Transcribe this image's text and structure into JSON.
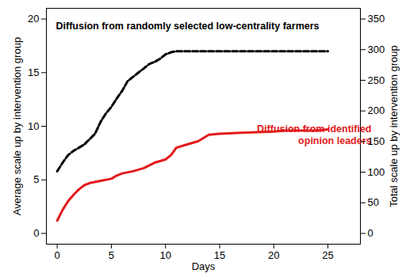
{
  "chart_data": {
    "type": "line",
    "x_label": "Days",
    "y_label": "Average scale up by intervention group",
    "y2_label": "Total scale up by intervention group",
    "xlim": [
      -1,
      28
    ],
    "xticks": [
      0,
      5,
      10,
      15,
      20,
      25
    ],
    "ylim": [
      -1,
      21
    ],
    "yticks": [
      0,
      5,
      10,
      15,
      20
    ],
    "y2lim": [
      -17.5,
      367.5
    ],
    "y2ticks": [
      0,
      50,
      100,
      150,
      200,
      250,
      300,
      350
    ],
    "series": [
      {
        "name": "Diffusion from randomly selected low-centrality farmers",
        "color": "#000000",
        "line_style": "dashed",
        "x": [
          0,
          0.5,
          1,
          1.5,
          2,
          2.5,
          3,
          3.5,
          4,
          4.5,
          5,
          5.5,
          6,
          6.5,
          7,
          7.5,
          8,
          8.5,
          9,
          9.5,
          10,
          10.5,
          11,
          12,
          25
        ],
        "values": [
          5.8,
          6.6,
          7.3,
          7.7,
          8.0,
          8.3,
          8.8,
          9.3,
          10.4,
          11.2,
          11.8,
          12.6,
          13.3,
          14.2,
          14.6,
          15.0,
          15.4,
          15.8,
          16.0,
          16.3,
          16.7,
          16.9,
          17.0,
          17.0,
          17.0
        ]
      },
      {
        "name": "Diffusion from identified\nopinion leaders",
        "color": "#e31a1c",
        "line_style": "solid",
        "x": [
          0,
          0.5,
          1,
          1.5,
          2,
          2.5,
          3,
          4,
          5,
          5.5,
          6,
          7,
          8,
          9,
          10,
          10.5,
          11,
          12,
          13,
          14,
          15,
          17,
          20,
          21,
          24,
          25
        ],
        "values": [
          1.2,
          2.2,
          3.0,
          3.6,
          4.1,
          4.5,
          4.7,
          4.9,
          5.1,
          5.4,
          5.6,
          5.8,
          6.1,
          6.6,
          6.9,
          7.3,
          8.0,
          8.3,
          8.6,
          9.2,
          9.3,
          9.4,
          9.5,
          9.6,
          9.6,
          9.7
        ]
      }
    ]
  }
}
